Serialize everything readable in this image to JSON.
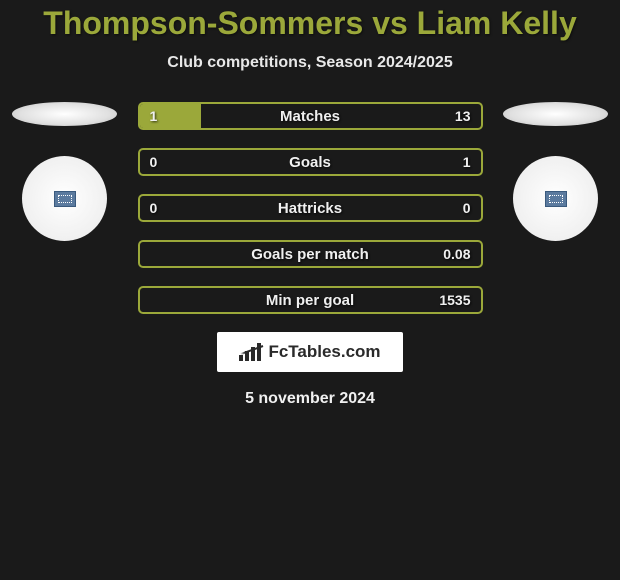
{
  "title": "Thompson-Sommers vs Liam Kelly",
  "subtitle": "Club competitions, Season 2024/2025",
  "colors": {
    "background": "#1a1a1a",
    "accent": "#9ba83a",
    "text": "#f0f0f0",
    "title_color": "#9ba83a"
  },
  "typography": {
    "title_fontsize": 32,
    "subtitle_fontsize": 16,
    "stat_label_fontsize": 15,
    "stat_value_fontsize": 14
  },
  "stats": [
    {
      "label": "Matches",
      "left_value": "1",
      "right_value": "13",
      "left_fill_pct": 18,
      "right_fill_pct": 0
    },
    {
      "label": "Goals",
      "left_value": "0",
      "right_value": "1",
      "left_fill_pct": 0,
      "right_fill_pct": 0
    },
    {
      "label": "Hattricks",
      "left_value": "0",
      "right_value": "0",
      "left_fill_pct": 0,
      "right_fill_pct": 0
    },
    {
      "label": "Goals per match",
      "left_value": "",
      "right_value": "0.08",
      "left_fill_pct": 0,
      "right_fill_pct": 0
    },
    {
      "label": "Min per goal",
      "left_value": "",
      "right_value": "1535",
      "left_fill_pct": 0,
      "right_fill_pct": 0
    }
  ],
  "logo_text": "FcTables.com",
  "date": "5 november 2024"
}
